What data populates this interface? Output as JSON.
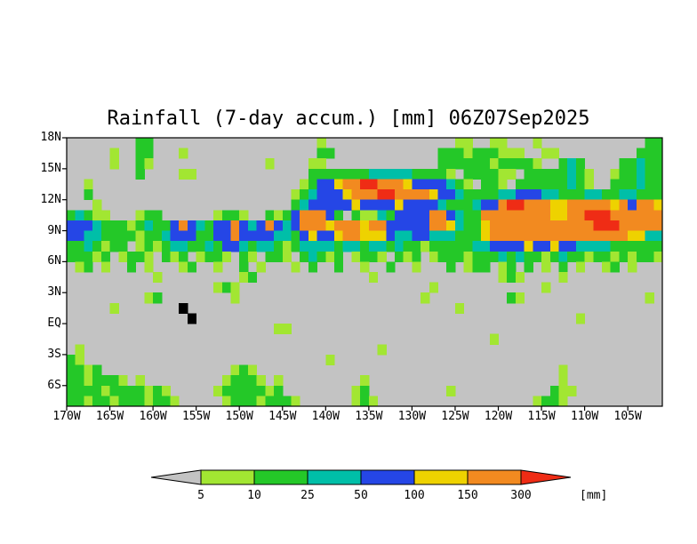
{
  "title": "Rainfall (7-day accum.) [mm] 06Z07Sep2025",
  "colorbar": {
    "tick_labels": [
      "5",
      "10",
      "25",
      "50",
      "100",
      "150",
      "300"
    ],
    "units_label": "[mm]"
  },
  "chart_data": {
    "type": "heatmap",
    "title": "Rainfall (7-day accum.) [mm] 06Z07Sep2025",
    "variable": "7-day accumulated rainfall",
    "units": "mm",
    "valid_time": "06Z07Sep2025",
    "x_axis": {
      "min": -170,
      "max": -101,
      "tick_lons": [
        -170,
        -165,
        -160,
        -155,
        -150,
        -145,
        -140,
        -135,
        -130,
        -125,
        -120,
        -115,
        -110,
        -105
      ],
      "tick_labels": [
        "170W",
        "165W",
        "160W",
        "155W",
        "150W",
        "145W",
        "140W",
        "135W",
        "130W",
        "125W",
        "120W",
        "115W",
        "110W",
        "105W"
      ]
    },
    "y_axis": {
      "min": -8,
      "max": 18,
      "tick_lats": [
        18,
        15,
        12,
        9,
        6,
        3,
        0,
        -3,
        -6
      ],
      "tick_labels": [
        "18N",
        "15N",
        "12N",
        "9N",
        "6N",
        "3N",
        "EQ",
        "3S",
        "6S"
      ]
    },
    "levels_mm": [
      5,
      10,
      25,
      50,
      100,
      150,
      300
    ],
    "palette": {
      "background": "#ffffff",
      "map_gray": "#c3c3c3",
      "island_black": "#000000",
      "bins": [
        "#a2e632",
        "#24c828",
        "#00bfa8",
        "#2546e6",
        "#eed200",
        "#f28a20",
        "#ef2c15"
      ]
    },
    "grid": {
      "cols": 69,
      "rows": 26,
      "lon_start": -170,
      "lat_start": 18,
      "cell_deg": 1,
      "symbols": {
        ".": "0-5 mm",
        "1": "5-10 mm",
        "2": "10-25 mm",
        "3": "25-50 mm",
        "4": "50-100 mm",
        "5": "100-150 mm",
        "6": "150-300 mm",
        "7": ">300 mm",
        "K": "island"
      },
      "rows_data": [
        [
          "........22",
          "..........",
          ".........1",
          "..........",
          ".....11..1",
          "1...1.....",
          ".......22"
        ],
        [
          ".....1..22",
          "...1......",
          ".........2",
          "2.........",
          "...2221222",
          "111..11...",
          "......222"
        ],
        [
          ".....1..21",
          "..........",
          "...1....11",
          "..........",
          "...2222221",
          "22221..232",
          "....22322"
        ],
        [
          "........2.",
          "...11.....",
          "........22",
          "2222233333",
          "22221.2222",
          "11.2222232",
          "1..122322"
        ],
        [
          "..1.......",
          "..........",
          ".......124",
          "4566776665",
          "4444321.22",
          "1.22222232",
          "1..222322"
        ],
        [
          "..2.......",
          "..........",
          "......1234",
          "4456667766",
          "6654432222",
          "3344433222",
          "332233222"
        ],
        [
          "...1......",
          "..........",
          "......2344",
          "4445444454",
          "4443222344",
          "6776665566",
          "666564665"
        ],
        [
          "23211...12",
          "2......122",
          "1..2124666",
          "42.2113244",
          "4466432266",
          "6666665566",
          "777666666"
        ],
        [
          "4443222123",
          "2246432446",
          "4346434666",
          "5666566444",
          "4466532256",
          "6666666666",
          "677766666"
        ],
        [
          "4433222212",
          "2344422446",
          "4444332454",
          "4566555433",
          "4433322256",
          "6666666666",
          "666665533"
        ],
        [
          "2232122.12",
          "1233223244",
          "3233212333",
          "3233233232",
          "2122222334",
          "4445445443",
          "333222222"
        ],
        [
          "22212.1221",
          ".212.1221.",
          "21.221.232",
          "12.1221.21",
          "2.12221222",
          "3232212322",
          "122121221"
        ],
        [
          ".12.1..2.1",
          "...12..1..",
          "2.1...1.2.",
          ".2..1..2..",
          "1...2.122.",
          "12.2.1.2.1",
          "..12.1..."
        ],
        [
          "..........",
          "1.........",
          "12........",
          ".....1....",
          "..........",
          "121....1..",
          "........."
        ],
        [
          "..........",
          ".......121",
          "..........",
          "..........",
          "..1.......",
          ".....1....",
          "........."
        ],
        [
          ".........1",
          "2........1",
          "..........",
          "..........",
          ".1........",
          ".21.......",
          ".......1."
        ],
        [
          ".....1....",
          "...K......",
          "..........",
          "..........",
          ".....1....",
          "..........",
          "........."
        ],
        [
          "..........",
          "....K.....",
          "..........",
          "..........",
          "..........",
          ".........1",
          "........."
        ],
        [
          "..........",
          "..........",
          "....11....",
          "..........",
          "..........",
          "..........",
          "........."
        ],
        [
          "..........",
          "..........",
          "..........",
          "..........",
          ".........1",
          "..........",
          "........."
        ],
        [
          ".1........",
          "..........",
          "..........",
          "......1...",
          "..........",
          "..........",
          "........."
        ],
        [
          "21........",
          "..........",
          "..........",
          "1.........",
          "..........",
          "..........",
          "........."
        ],
        [
          "2212......",
          ".........1",
          "21........",
          "..........",
          "..........",
          ".......1..",
          "........."
        ],
        [
          "2212221.1.",
          "........12",
          "221.1.....",
          "....1.....",
          "..........",
          ".......1..",
          "........."
        ],
        [
          "2222122221",
          "21.....122",
          "22212.....",
          "...12.....",
          "....1.....",
          "......211.",
          "........."
        ],
        [
          "2212212221",
          "221.....12",
          "2212221...",
          "...121....",
          "..........",
          "....1221..",
          "........."
        ]
      ]
    }
  }
}
